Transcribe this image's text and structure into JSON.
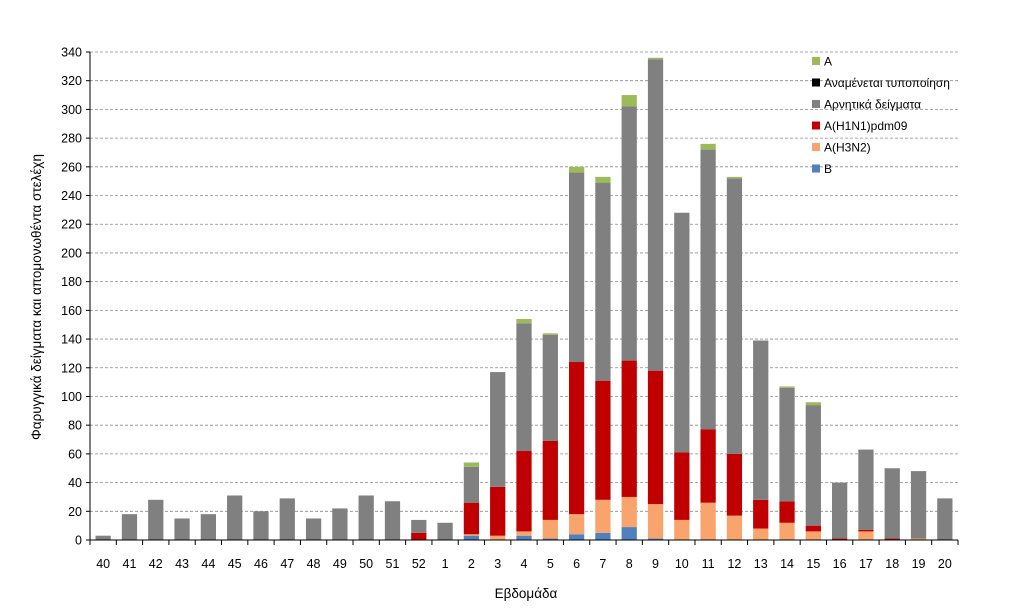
{
  "chart_data": {
    "type": "bar",
    "stacked": true,
    "title": "",
    "xlabel": "Εβδομάδα",
    "ylabel": "Φαρυγγικά δείγματα και απομονωθέντα στελέχη",
    "ylim": [
      0,
      340
    ],
    "ytick_step": 20,
    "grid": true,
    "legend_position": "top-right",
    "categories": [
      "40",
      "41",
      "42",
      "43",
      "44",
      "45",
      "46",
      "47",
      "48",
      "49",
      "50",
      "51",
      "52",
      "1",
      "2",
      "3",
      "4",
      "5",
      "6",
      "7",
      "8",
      "9",
      "10",
      "11",
      "12",
      "13",
      "14",
      "15",
      "16",
      "17",
      "18",
      "19",
      "20"
    ],
    "series": [
      {
        "name": "B",
        "color": "#4f81bd",
        "values": [
          0,
          0,
          0,
          0,
          0,
          0,
          0,
          0,
          0,
          0,
          0,
          0,
          0,
          0,
          3,
          0,
          3,
          1,
          4,
          5,
          9,
          1,
          0,
          0,
          0,
          0,
          0,
          0,
          0,
          0,
          0,
          0,
          0
        ]
      },
      {
        "name": "A(H3N2)",
        "color": "#f9a46d",
        "values": [
          0,
          0,
          0,
          0,
          0,
          0,
          0,
          0,
          0,
          0,
          0,
          0,
          0,
          0,
          1,
          3,
          3,
          13,
          14,
          23,
          21,
          24,
          14,
          26,
          17,
          8,
          12,
          6,
          0,
          6,
          0,
          1,
          0
        ]
      },
      {
        "name": "A(H1N1)pdm09",
        "color": "#c00000",
        "values": [
          0,
          0,
          0,
          0,
          0,
          0,
          0,
          0,
          0,
          0,
          0,
          0,
          5,
          0,
          22,
          34,
          56,
          55,
          106,
          83,
          95,
          93,
          47,
          51,
          43,
          20,
          15,
          4,
          1,
          1,
          1,
          0,
          0
        ]
      },
      {
        "name": "Αρνητικά δείγματα",
        "color": "#808080",
        "values": [
          3,
          18,
          28,
          15,
          18,
          31,
          20,
          29,
          15,
          22,
          31,
          27,
          9,
          12,
          25,
          80,
          89,
          74,
          132,
          138,
          177,
          217,
          167,
          195,
          192,
          111,
          79,
          84,
          39,
          56,
          49,
          47,
          29
        ]
      },
      {
        "name": "Αναμένεται τυποποίηση",
        "color": "#000000",
        "values": [
          0,
          0,
          0,
          0,
          0,
          0,
          0,
          0,
          0,
          0,
          0,
          0,
          0,
          0,
          0,
          0,
          0,
          0,
          0,
          0,
          0,
          0,
          0,
          0,
          0,
          0,
          0,
          0,
          0,
          0,
          0,
          0,
          0
        ]
      },
      {
        "name": "A",
        "color": "#9bbb59",
        "values": [
          0,
          0,
          0,
          0,
          0,
          0,
          0,
          0,
          0,
          0,
          0,
          0,
          0,
          0,
          3,
          0,
          3,
          1,
          4,
          4,
          8,
          1,
          0,
          4,
          1,
          0,
          1,
          2,
          0,
          0,
          0,
          0,
          0
        ]
      }
    ],
    "legend_order": [
      "A",
      "Αναμένεται τυποποίηση",
      "Αρνητικά δείγματα",
      "A(H1N1)pdm09",
      "A(H3N2)",
      "B"
    ]
  }
}
